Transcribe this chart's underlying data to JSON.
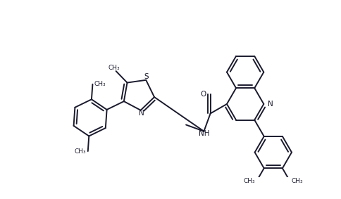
{
  "bg_color": "#ffffff",
  "line_color": "#1a1a2e",
  "line_width": 1.4,
  "figsize": [
    4.84,
    2.83
  ],
  "dpi": 100,
  "xlim": [
    0,
    484
  ],
  "ylim": [
    0,
    283
  ]
}
